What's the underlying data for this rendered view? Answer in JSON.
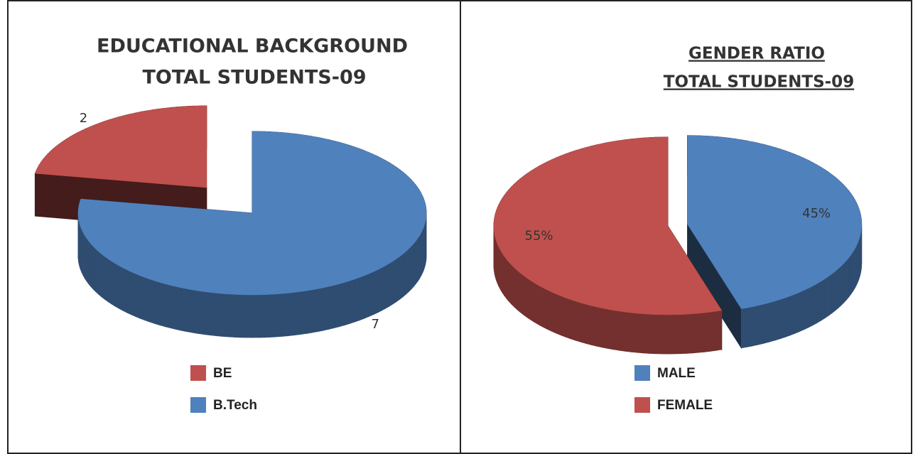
{
  "chart_data": [
    {
      "type": "pie",
      "title": "EDUCATIONAL BACKGROUND",
      "subtitle": "TOTAL STUDENTS-09",
      "categories": [
        "BE",
        "B.Tech"
      ],
      "values": [
        2,
        7
      ],
      "colors": [
        "#c0504d",
        "#4f81bd"
      ]
    },
    {
      "type": "pie",
      "title": "GENDER RATIO",
      "subtitle": "TOTAL STUDENTS-09",
      "categories": [
        "MALE",
        "FEMALE"
      ],
      "values": [
        45,
        55
      ],
      "value_labels": [
        "45%",
        "55%"
      ],
      "colors": [
        "#4f81bd",
        "#c0504d"
      ]
    }
  ]
}
